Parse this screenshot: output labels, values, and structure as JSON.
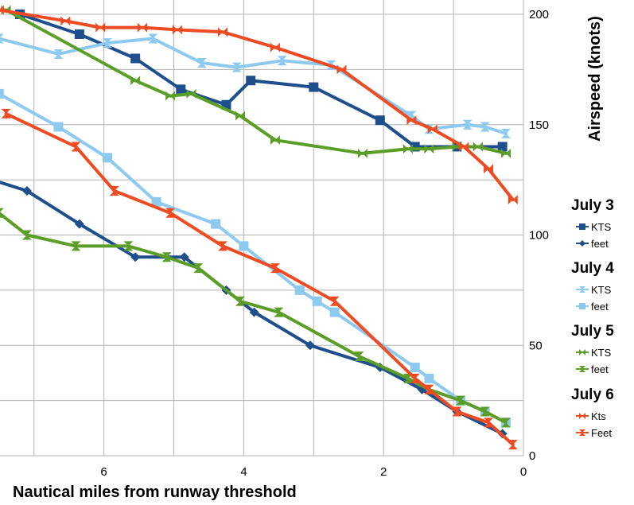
{
  "chart_data": {
    "type": "line",
    "xlabel": "Nautical miles from runway threshold",
    "ylabel": "Airspeed (knots)",
    "xlim": [
      7.5,
      0
    ],
    "ylim": [
      0,
      205
    ],
    "x_ticks": [
      6,
      4,
      2,
      0
    ],
    "x_tick_labels": [
      "6",
      "4",
      "2",
      "0"
    ],
    "y_ticks": [
      0,
      50,
      100,
      150,
      200
    ],
    "y_tick_labels": [
      "0",
      "50",
      "100",
      "150",
      "200"
    ],
    "grid": true,
    "y_axis_side": "right",
    "legend": {
      "placement": "right",
      "groups": [
        {
          "title": "July 3",
          "entries": [
            {
              "label": "KTS",
              "series": 0
            },
            {
              "label": "feet",
              "series": 1
            }
          ]
        },
        {
          "title": "July 4",
          "entries": [
            {
              "label": "KTS",
              "series": 2
            },
            {
              "label": "feet",
              "series": 3
            }
          ]
        },
        {
          "title": "July 5",
          "entries": [
            {
              "label": "KTS",
              "series": 4
            },
            {
              "label": "feet",
              "series": 5
            }
          ]
        },
        {
          "title": "July 6",
          "entries": [
            {
              "label": "Kts",
              "series": 6
            },
            {
              "label": "Feet",
              "series": 7
            }
          ]
        }
      ]
    },
    "series": [
      {
        "color": "#1f4e8c",
        "marker": "square",
        "x": [
          7.2,
          6.35,
          5.55,
          4.9,
          4.25,
          3.9,
          3.0,
          2.05,
          1.55,
          0.95,
          0.3
        ],
        "y": [
          200,
          191,
          180,
          166,
          159,
          170,
          167,
          152,
          140,
          140,
          140
        ]
      },
      {
        "color": "#1f4e8c",
        "marker": "diamond",
        "x": [
          7.6,
          7.1,
          6.35,
          5.55,
          4.85,
          4.25,
          3.85,
          3.05,
          2.05,
          1.45,
          0.95,
          0.3
        ],
        "y": [
          125,
          120,
          105,
          90,
          90,
          75,
          65,
          50,
          40,
          30,
          20,
          10
        ]
      },
      {
        "color": "#8ec9f0",
        "marker": "hourglass",
        "x": [
          7.5,
          6.65,
          5.95,
          5.3,
          4.6,
          4.1,
          3.45,
          2.75,
          1.6,
          1.35,
          0.8,
          0.55,
          0.25
        ],
        "y": [
          189,
          182,
          187,
          189,
          178,
          176,
          179,
          177,
          154,
          148,
          150,
          149,
          146
        ]
      },
      {
        "color": "#8ec9f0",
        "marker": "square",
        "x": [
          7.5,
          6.65,
          5.95,
          5.25,
          4.4,
          4.0,
          3.2,
          2.95,
          2.7,
          1.55,
          1.35,
          0.9,
          0.55,
          0.25
        ],
        "y": [
          164,
          149,
          135,
          115,
          105,
          95,
          75,
          70,
          65,
          40,
          35,
          25,
          20,
          15
        ]
      },
      {
        "color": "#5a9e28",
        "marker": "bowtie",
        "x": [
          7.4,
          5.55,
          5.05,
          4.75,
          4.05,
          3.55,
          2.3,
          1.65,
          1.35,
          0.95,
          0.65,
          0.25
        ],
        "y": [
          202,
          170,
          163,
          164,
          154,
          143,
          137,
          139,
          139,
          140,
          140,
          137
        ]
      },
      {
        "color": "#5a9e28",
        "marker": "hourglass",
        "x": [
          7.5,
          7.1,
          6.4,
          5.65,
          5.1,
          4.65,
          4.05,
          3.5,
          2.35,
          1.65,
          1.35,
          0.9,
          0.55,
          0.25
        ],
        "y": [
          110,
          100,
          95,
          95,
          90,
          85,
          70,
          65,
          45,
          35,
          30,
          25,
          20,
          15
        ]
      },
      {
        "color": "#ef4b22",
        "marker": "bowtie",
        "x": [
          7.5,
          6.55,
          6.05,
          5.45,
          4.95,
          4.3,
          3.55,
          2.6,
          1.6,
          1.3,
          0.85,
          0.5,
          0.15
        ],
        "y": [
          202,
          197,
          194,
          194,
          193,
          192,
          185,
          175,
          152,
          148,
          140,
          130,
          116
        ]
      },
      {
        "color": "#ef4b22",
        "marker": "hourglass",
        "x": [
          7.4,
          6.4,
          5.85,
          5.05,
          4.3,
          3.55,
          2.7,
          1.55,
          1.35,
          0.95,
          0.5,
          0.15
        ],
        "y": [
          155,
          140,
          120,
          110,
          95,
          85,
          70,
          35,
          30,
          20,
          15,
          5
        ]
      }
    ]
  }
}
